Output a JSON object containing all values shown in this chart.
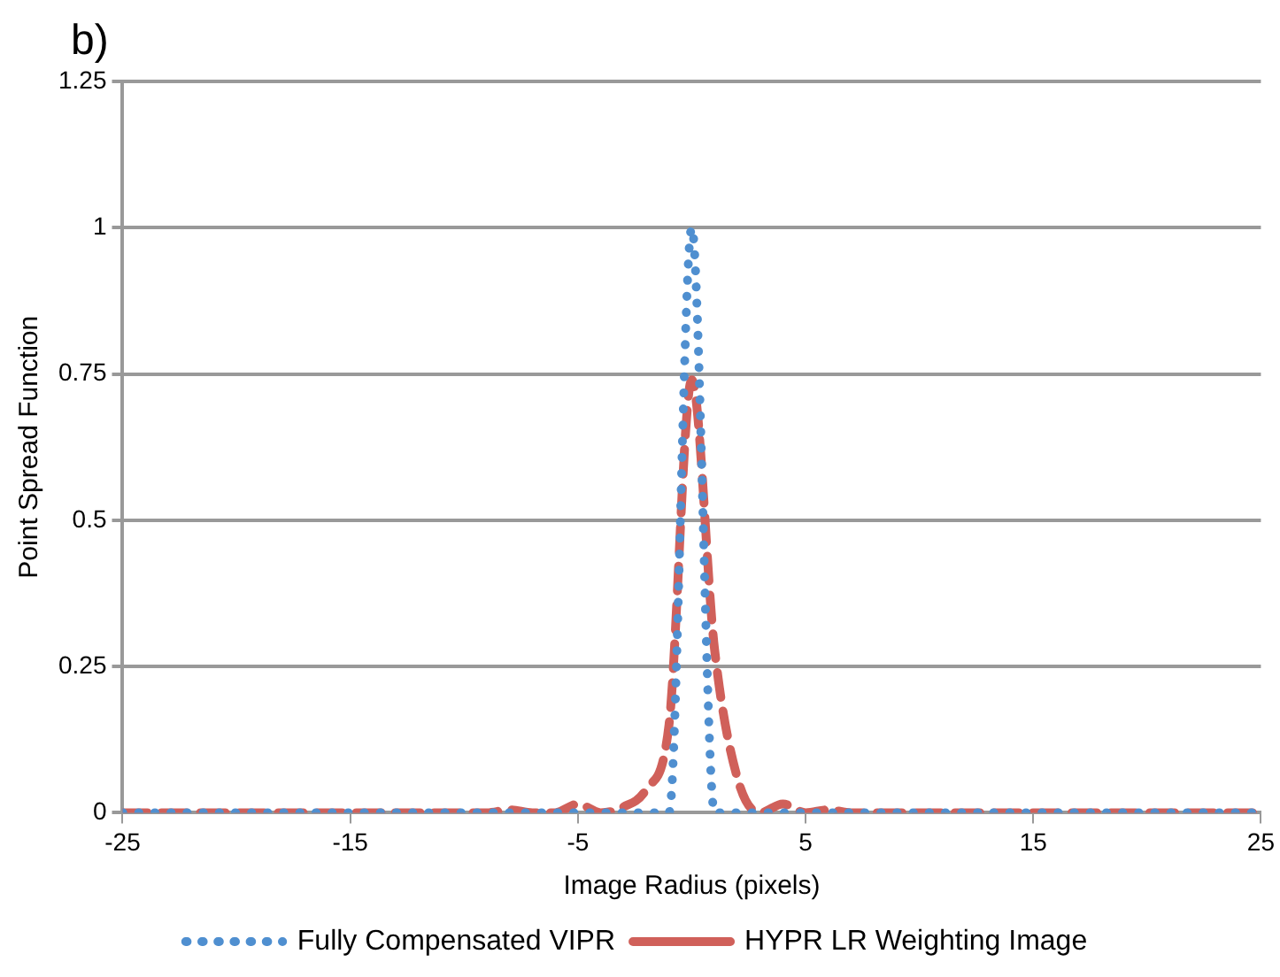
{
  "chart_data": {
    "type": "line",
    "title": "b)",
    "xlabel": "Image Radius (pixels)",
    "ylabel": "Point Spread Function",
    "x": [
      -25,
      -24,
      -23,
      -22,
      -21,
      -20,
      -19,
      -18,
      -17,
      -16,
      -15,
      -14,
      -13,
      -12,
      -11,
      -10,
      -9,
      -8,
      -7,
      -6,
      -5,
      -4,
      -3,
      -2,
      -1,
      0,
      1,
      2,
      3,
      4,
      5,
      6,
      7,
      8,
      9,
      10,
      11,
      12,
      13,
      14,
      15,
      16,
      17,
      18,
      19,
      20,
      21,
      22,
      23,
      24,
      25
    ],
    "series": [
      {
        "name": "Fully Compensated VIPR",
        "color": "#4f8fd0",
        "line_style": "dotted",
        "values": [
          0,
          0,
          0,
          0,
          0,
          0,
          0,
          0,
          0,
          0,
          0,
          0,
          0,
          0,
          0,
          0,
          0,
          0,
          0,
          0,
          0,
          0,
          0,
          0,
          0,
          1,
          0,
          0,
          0,
          0,
          0,
          0,
          0,
          0,
          0,
          0,
          0,
          0,
          0,
          0,
          0,
          0,
          0,
          0,
          0,
          0,
          0,
          0,
          0,
          0,
          0
        ]
      },
      {
        "name": "HYPR LR Weighting Image",
        "color": "#d0605a",
        "line_style": "dashed",
        "values": [
          0,
          0,
          0,
          0,
          0,
          0,
          0,
          0,
          0,
          0,
          0,
          0,
          0,
          0,
          0,
          0,
          0,
          0.005,
          0,
          0,
          0.015,
          0,
          0.01,
          0.04,
          0.15,
          0.74,
          0.28,
          0.06,
          0,
          0.015,
          0,
          0.005,
          0,
          0,
          0,
          0,
          0,
          0,
          0,
          0,
          0,
          0,
          0,
          0,
          0,
          0,
          0,
          0,
          0,
          0,
          0
        ]
      }
    ],
    "xlim": [
      -25,
      25
    ],
    "xticks": [
      -25,
      -15,
      -5,
      5,
      15,
      25
    ],
    "ylim": [
      0,
      1.25
    ],
    "yticks": [
      0,
      0.25,
      0.5,
      0.75,
      1,
      1.25
    ],
    "grid": "y",
    "legend": "bottom",
    "marker": "none"
  }
}
